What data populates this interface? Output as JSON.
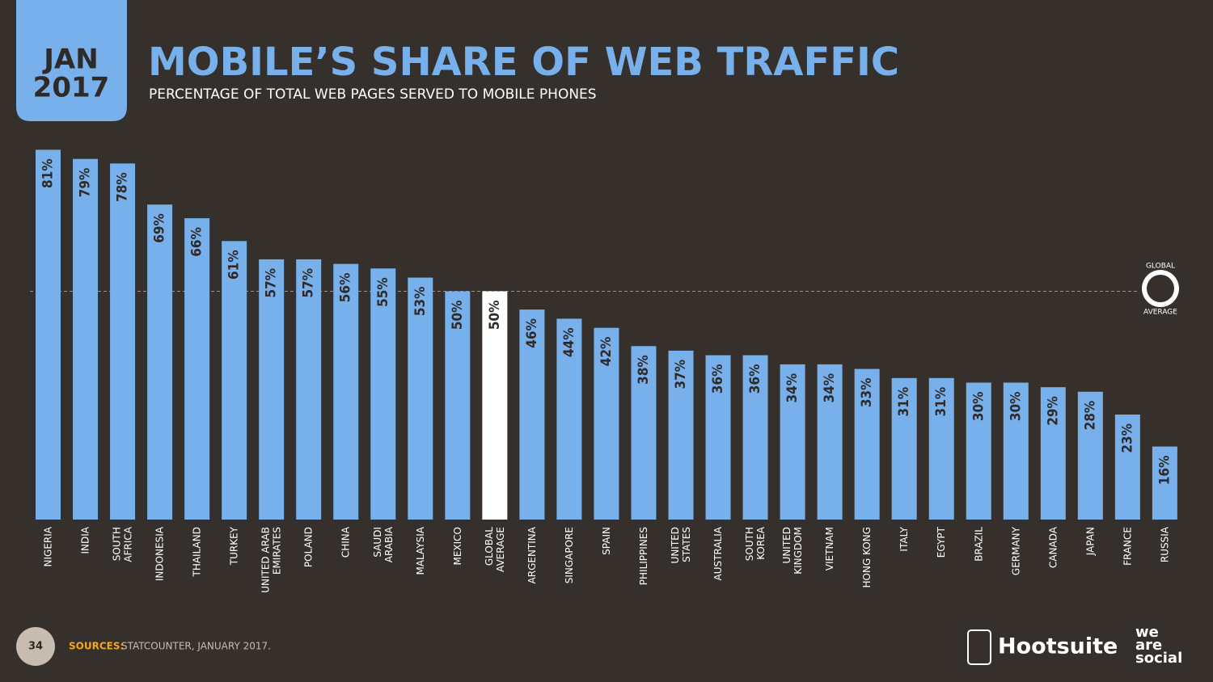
{
  "header": {
    "date_line1": "JAN",
    "date_line2": "2017"
  },
  "chart_data": {
    "type": "bar",
    "title": "MOBILE’S SHARE OF WEB TRAFFIC",
    "subtitle": "PERCENTAGE OF TOTAL WEB PAGES SERVED TO MOBILE PHONES",
    "categories": [
      "NIGERIA",
      "INDIA",
      "SOUTH\nAFRICA",
      "INDONESIA",
      "THAILAND",
      "TURKEY",
      "UNITED ARAB\nEMIRATES",
      "POLAND",
      "CHINA",
      "SAUDI\nARABIA",
      "MALAYSIA",
      "MEXICO",
      "GLOBAL\nAVERAGE",
      "ARGENTINA",
      "SINGAPORE",
      "SPAIN",
      "PHILIPPINES",
      "UNITED\nSTATES",
      "AUSTRALIA",
      "SOUTH\nKOREA",
      "UNITED\nKINGDOM",
      "VIETNAM",
      "HONG KONG",
      "ITALY",
      "EGYPT",
      "BRAZIL",
      "GERMANY",
      "CANADA",
      "JAPAN",
      "FRANCE",
      "RUSSIA"
    ],
    "values": [
      81,
      79,
      78,
      69,
      66,
      61,
      57,
      57,
      56,
      55,
      53,
      50,
      50,
      46,
      44,
      42,
      38,
      37,
      36,
      36,
      34,
      34,
      33,
      31,
      31,
      30,
      30,
      29,
      28,
      23,
      16
    ],
    "value_labels": [
      "81%",
      "79%",
      "78%",
      "69%",
      "66%",
      "61%",
      "57%",
      "57%",
      "56%",
      "55%",
      "53%",
      "50%",
      "50%",
      "46%",
      "44%",
      "42%",
      "38%",
      "37%",
      "36%",
      "36%",
      "34%",
      "34%",
      "33%",
      "31%",
      "31%",
      "30%",
      "30%",
      "29%",
      "28%",
      "23%",
      "16%"
    ],
    "colors": [
      "#78b0ec",
      "#78b0ec",
      "#78b0ec",
      "#78b0ec",
      "#78b0ec",
      "#78b0ec",
      "#78b0ec",
      "#78b0ec",
      "#78b0ec",
      "#78b0ec",
      "#78b0ec",
      "#78b0ec",
      "#ffffff",
      "#78b0ec",
      "#78b0ec",
      "#78b0ec",
      "#78b0ec",
      "#78b0ec",
      "#78b0ec",
      "#78b0ec",
      "#78b0ec",
      "#78b0ec",
      "#78b0ec",
      "#78b0ec",
      "#78b0ec",
      "#78b0ec",
      "#78b0ec",
      "#78b0ec",
      "#78b0ec",
      "#78b0ec",
      "#78b0ec"
    ],
    "ylim": [
      0,
      100
    ],
    "reference_label_top": "GLOBAL",
    "reference_label_bottom": "AVERAGE"
  },
  "footer": {
    "page": "34",
    "sources_label": "SOURCES:",
    "sources_text": "STATCOUNTER, JANUARY 2017.",
    "brand1": "Hootsuite",
    "brand2_line1": "we",
    "brand2_line2": "are",
    "brand2_line3": "social"
  }
}
